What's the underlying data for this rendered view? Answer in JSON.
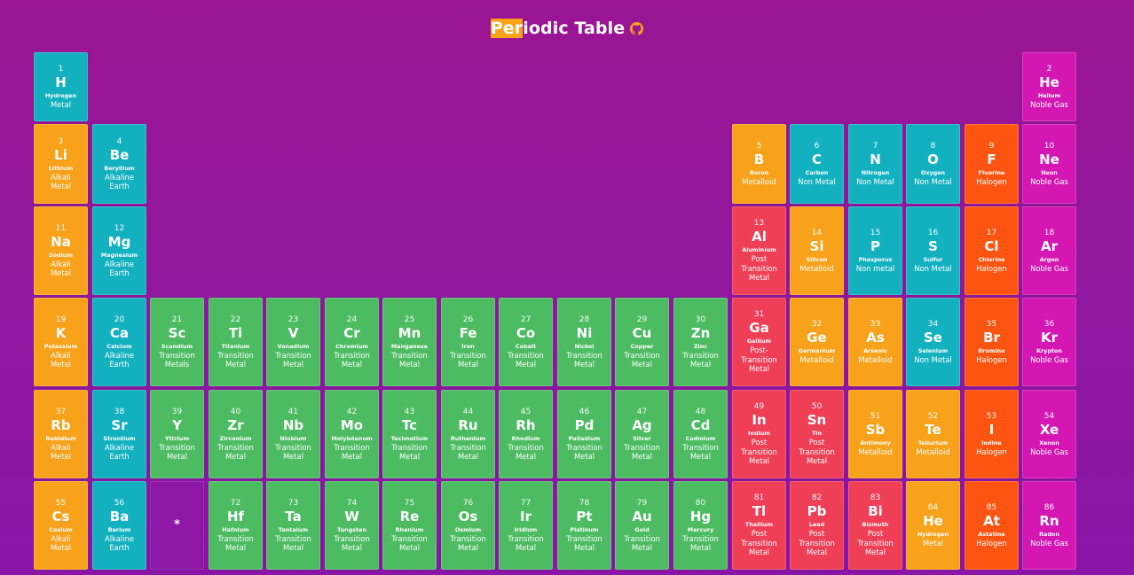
{
  "header": {
    "title_highlight": "Per",
    "title_rest": "iodic Table",
    "github_icon": "github-icon",
    "accent": "#f6a31a"
  },
  "elements": [
    {
      "n": "1",
      "s": "H",
      "name": "Hydrogen",
      "cat": "Metal",
      "c": "hmetal"
    },
    {
      "n": "2",
      "s": "He",
      "name": "Helium",
      "cat": "Noble Gas",
      "c": "noble"
    },
    {
      "n": "3",
      "s": "Li",
      "name": "Lithium",
      "cat": "Alkali\nMetal",
      "c": "alkali"
    },
    {
      "n": "4",
      "s": "Be",
      "name": "Beryllium",
      "cat": "Alkaline\nEarth",
      "c": "alkaline"
    },
    {
      "n": "5",
      "s": "B",
      "name": "Boron",
      "cat": "Metalloid",
      "c": "metalloid"
    },
    {
      "n": "6",
      "s": "C",
      "name": "Carbon",
      "cat": "Non Metal",
      "c": "nonmetal"
    },
    {
      "n": "7",
      "s": "N",
      "name": "Nitrogen",
      "cat": "Non Metal",
      "c": "nonmetal"
    },
    {
      "n": "8",
      "s": "O",
      "name": "Oxygen",
      "cat": "Non Metal",
      "c": "nonmetal"
    },
    {
      "n": "9",
      "s": "F",
      "name": "Fluorine",
      "cat": "Halogen",
      "c": "halogen"
    },
    {
      "n": "10",
      "s": "Ne",
      "name": "Neon",
      "cat": "Noble Gas",
      "c": "noble"
    },
    {
      "n": "11",
      "s": "Na",
      "name": "Sodium",
      "cat": "Alkali\nMetal",
      "c": "alkali"
    },
    {
      "n": "12",
      "s": "Mg",
      "name": "Magnesium",
      "cat": "Alkaline\nEarth",
      "c": "alkaline"
    },
    {
      "n": "13",
      "s": "Al",
      "name": "Aluminium",
      "cat": "Post\nTransition\nMetal",
      "c": "postt"
    },
    {
      "n": "14",
      "s": "Si",
      "name": "Silicon",
      "cat": "Metalloid",
      "c": "metalloid"
    },
    {
      "n": "15",
      "s": "P",
      "name": "Phosporus",
      "cat": "Non metal",
      "c": "nonmetal"
    },
    {
      "n": "16",
      "s": "S",
      "name": "Sulfur",
      "cat": "Non Metal",
      "c": "nonmetal"
    },
    {
      "n": "17",
      "s": "Cl",
      "name": "Chlorine",
      "cat": "Halogen",
      "c": "halogen"
    },
    {
      "n": "18",
      "s": "Ar",
      "name": "Argon",
      "cat": "Noble Gas",
      "c": "noble"
    },
    {
      "n": "19",
      "s": "K",
      "name": "Potassium",
      "cat": "Alkali\nMetal",
      "c": "alkali"
    },
    {
      "n": "20",
      "s": "Ca",
      "name": "Calcium",
      "cat": "Alkaline\nEarth",
      "c": "alkaline"
    },
    {
      "n": "21",
      "s": "Sc",
      "name": "Scandium",
      "cat": "Transition\nMetals",
      "c": "transition"
    },
    {
      "n": "22",
      "s": "Ti",
      "name": "Titanium",
      "cat": "Transition\nMetal",
      "c": "transition"
    },
    {
      "n": "23",
      "s": "V",
      "name": "Vanadium",
      "cat": "Transition\nMetal",
      "c": "transition"
    },
    {
      "n": "24",
      "s": "Cr",
      "name": "Chromium",
      "cat": "Transition\nMetal",
      "c": "transition"
    },
    {
      "n": "25",
      "s": "Mn",
      "name": "Manganese",
      "cat": "Transition\nMetal",
      "c": "transition"
    },
    {
      "n": "26",
      "s": "Fe",
      "name": "Iron",
      "cat": "Transition\nMetal",
      "c": "transition"
    },
    {
      "n": "27",
      "s": "Co",
      "name": "Cobalt",
      "cat": "Transition\nMetal",
      "c": "transition"
    },
    {
      "n": "28",
      "s": "Ni",
      "name": "Nickel",
      "cat": "Transition\nMetal",
      "c": "transition"
    },
    {
      "n": "29",
      "s": "Cu",
      "name": "Copper",
      "cat": "Transition\nMetal",
      "c": "transition"
    },
    {
      "n": "30",
      "s": "Zn",
      "name": "Zinc",
      "cat": "Transition\nMetal",
      "c": "transition"
    },
    {
      "n": "31",
      "s": "Ga",
      "name": "Gallium",
      "cat": "Post-\nTransition\nMetal",
      "c": "postt"
    },
    {
      "n": "32",
      "s": "Ge",
      "name": "Germanium",
      "cat": "Metalloid",
      "c": "metalloid"
    },
    {
      "n": "33",
      "s": "As",
      "name": "Arsenic",
      "cat": "Metalloid",
      "c": "metalloid"
    },
    {
      "n": "34",
      "s": "Se",
      "name": "Selenium",
      "cat": "Non Metal",
      "c": "nonmetal"
    },
    {
      "n": "35",
      "s": "Br",
      "name": "Bromine",
      "cat": "Halogen",
      "c": "halogen"
    },
    {
      "n": "36",
      "s": "Kr",
      "name": "Krypton",
      "cat": "Noble Gas",
      "c": "noble"
    },
    {
      "n": "37",
      "s": "Rb",
      "name": "Rubidium",
      "cat": "Alkali\nMetal",
      "c": "alkali"
    },
    {
      "n": "38",
      "s": "Sr",
      "name": "Strontium",
      "cat": "Alkaline\nEarth",
      "c": "alkaline"
    },
    {
      "n": "39",
      "s": "Y",
      "name": "Yttrium",
      "cat": "Transition\nMetal",
      "c": "transition"
    },
    {
      "n": "40",
      "s": "Zr",
      "name": "Zirconium",
      "cat": "Transition\nMetal",
      "c": "transition"
    },
    {
      "n": "41",
      "s": "Nb",
      "name": "Niobium",
      "cat": "Transition\nMetal",
      "c": "transition"
    },
    {
      "n": "42",
      "s": "Mo",
      "name": "Molybdenum",
      "cat": "Transition\nMetal",
      "c": "transition"
    },
    {
      "n": "43",
      "s": "Tc",
      "name": "Technetium",
      "cat": "Transition\nMetal",
      "c": "transition"
    },
    {
      "n": "44",
      "s": "Ru",
      "name": "Ruthenium",
      "cat": "Transition\nMetal",
      "c": "transition"
    },
    {
      "n": "45",
      "s": "Rh",
      "name": "Rhodium",
      "cat": "Transition\nMetal",
      "c": "transition"
    },
    {
      "n": "46",
      "s": "Pd",
      "name": "Palladium",
      "cat": "Transition\nMetal",
      "c": "transition"
    },
    {
      "n": "47",
      "s": "Ag",
      "name": "Silver",
      "cat": "Transition\nMetal",
      "c": "transition"
    },
    {
      "n": "48",
      "s": "Cd",
      "name": "Cadmium",
      "cat": "Transition\nMetal",
      "c": "transition"
    },
    {
      "n": "49",
      "s": "In",
      "name": "Indium",
      "cat": "Post\nTransition\nMetal",
      "c": "postt"
    },
    {
      "n": "50",
      "s": "Sn",
      "name": "Tin",
      "cat": "Post\nTransition\nMetal",
      "c": "postt"
    },
    {
      "n": "51",
      "s": "Sb",
      "name": "Antimony",
      "cat": "Metalloid",
      "c": "metalloid"
    },
    {
      "n": "52",
      "s": "Te",
      "name": "Tellurium",
      "cat": "Metalloid",
      "c": "metalloid"
    },
    {
      "n": "53",
      "s": "I",
      "name": "Iodine",
      "cat": "Halogen",
      "c": "halogen"
    },
    {
      "n": "54",
      "s": "Xe",
      "name": "Xenon",
      "cat": "Noble Gas",
      "c": "noble"
    },
    {
      "n": "55",
      "s": "Cs",
      "name": "Cesium",
      "cat": "Alkali\nMetal",
      "c": "alkali"
    },
    {
      "n": "56",
      "s": "Ba",
      "name": "Barium",
      "cat": "Alkaline\nEarth",
      "c": "alkaline"
    },
    {
      "n": "",
      "s": "*",
      "name": "",
      "cat": "",
      "c": "placeholder"
    },
    {
      "n": "72",
      "s": "Hf",
      "name": "Hafnium",
      "cat": "Transition\nMetal",
      "c": "transition"
    },
    {
      "n": "73",
      "s": "Ta",
      "name": "Tantalum",
      "cat": "Transition\nMetal",
      "c": "transition"
    },
    {
      "n": "74",
      "s": "W",
      "name": "Tungsten",
      "cat": "Transition\nMetal",
      "c": "transition"
    },
    {
      "n": "75",
      "s": "Re",
      "name": "Rhenium",
      "cat": "Transition\nMetal",
      "c": "transition"
    },
    {
      "n": "76",
      "s": "Os",
      "name": "Osmium",
      "cat": "Transition\nMetal",
      "c": "transition"
    },
    {
      "n": "77",
      "s": "Ir",
      "name": "Iridium",
      "cat": "Transition\nMetal",
      "c": "transition"
    },
    {
      "n": "78",
      "s": "Pt",
      "name": "Platinum",
      "cat": "Transition\nMetal",
      "c": "transition"
    },
    {
      "n": "79",
      "s": "Au",
      "name": "Gold",
      "cat": "Transition\nMetal",
      "c": "transition"
    },
    {
      "n": "80",
      "s": "Hg",
      "name": "Mercury",
      "cat": "Transition\nMetal",
      "c": "transition"
    },
    {
      "n": "81",
      "s": "Tl",
      "name": "Thallium",
      "cat": "Post\nTransition\nMetal",
      "c": "postt"
    },
    {
      "n": "82",
      "s": "Pb",
      "name": "Lead",
      "cat": "Post\nTransition\nMetal",
      "c": "postt"
    },
    {
      "n": "83",
      "s": "Bi",
      "name": "Bismuth",
      "cat": "Post\nTransition\nMetal",
      "c": "postt"
    },
    {
      "n": "84",
      "s": "He",
      "name": "Hydrogen",
      "cat": "Metal",
      "c": "alkali"
    },
    {
      "n": "85",
      "s": "At",
      "name": "Astatine",
      "cat": "Halogen",
      "c": "halogen"
    },
    {
      "n": "86",
      "s": "Rn",
      "name": "Radon",
      "cat": "Noble Gas",
      "c": "noble"
    }
  ]
}
